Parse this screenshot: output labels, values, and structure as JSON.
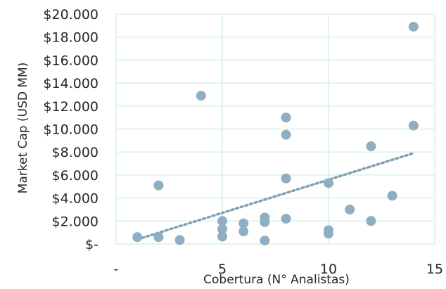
{
  "chart_data": {
    "type": "scatter",
    "title": "",
    "xlabel": "Cobertura (N° Analistas)",
    "ylabel": "Market Cap (USD MM)",
    "xlim": [
      0,
      15
    ],
    "ylim": [
      0,
      20000
    ],
    "x_ticks": [
      0,
      5,
      10,
      15
    ],
    "x_tick_labels": [
      "-",
      "5",
      "10",
      "15"
    ],
    "y_ticks": [
      0,
      2000,
      4000,
      6000,
      8000,
      10000,
      12000,
      14000,
      16000,
      18000,
      20000
    ],
    "y_tick_labels": [
      "$-",
      "$2.000",
      "$4.000",
      "$6.000",
      "$8.000",
      "$10.000",
      "$12.000",
      "$14.000",
      "$16.000",
      "$18.000",
      "$20.000"
    ],
    "grid": true,
    "colors": {
      "point": "#8faec4",
      "trendline": "#7f9fb5",
      "grid": "#d9f0e6"
    },
    "series": [
      {
        "points": [
          [
            1,
            600
          ],
          [
            2,
            600
          ],
          [
            2,
            5100
          ],
          [
            3,
            350
          ],
          [
            4,
            12900
          ],
          [
            5,
            2000
          ],
          [
            5,
            1300
          ],
          [
            5,
            650
          ],
          [
            6,
            1800
          ],
          [
            6,
            1100
          ],
          [
            7,
            2300
          ],
          [
            7,
            1900
          ],
          [
            7,
            300
          ],
          [
            8,
            11000
          ],
          [
            8,
            9500
          ],
          [
            8,
            5700
          ],
          [
            8,
            2200
          ],
          [
            10,
            5300
          ],
          [
            10,
            1200
          ],
          [
            10,
            900
          ],
          [
            11,
            3000
          ],
          [
            12,
            8500
          ],
          [
            12,
            2000
          ],
          [
            13,
            4200
          ],
          [
            14,
            18900
          ],
          [
            14,
            10300
          ]
        ]
      }
    ],
    "trendline": {
      "type": "linear",
      "x_start": 1,
      "x_end": 14,
      "y_start": 400,
      "y_end": 7900
    }
  }
}
